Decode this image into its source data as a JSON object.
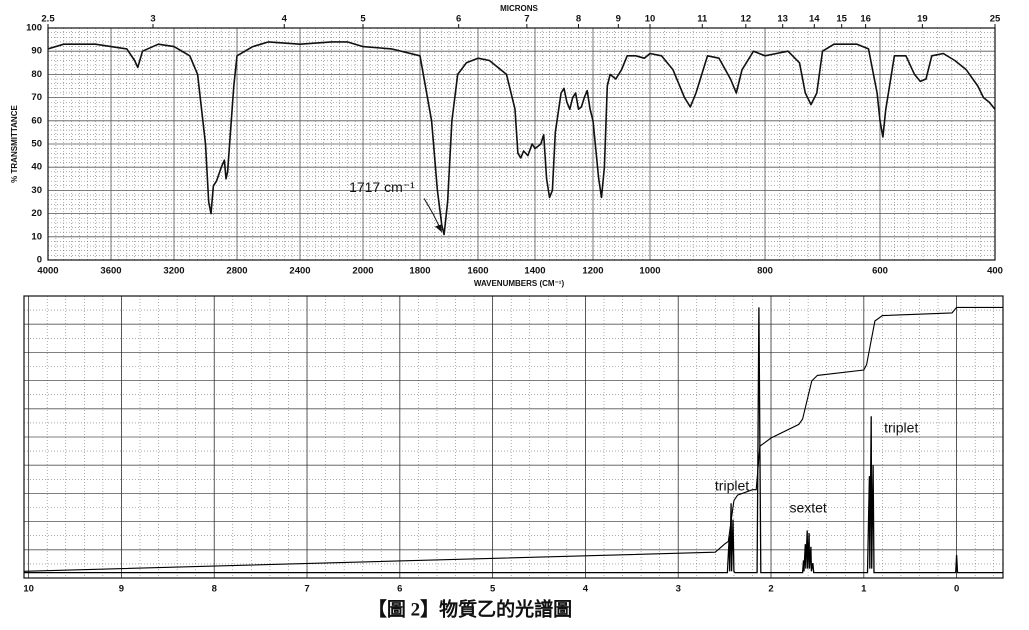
{
  "chart_data": [
    {
      "type": "line",
      "x2label": "MICRONS",
      "ylabel": "% TRANSMITTANCE",
      "xlabel": "WAVENUMBERS (CM⁻¹)",
      "x": [
        4000,
        3900,
        3700,
        3500,
        3450,
        3430,
        3400,
        3300,
        3200,
        3100,
        3050,
        3000,
        2980,
        2965,
        2950,
        2930,
        2900,
        2880,
        2870,
        2860,
        2820,
        2800,
        2700,
        2600,
        2400,
        2200,
        2100,
        2000,
        1900,
        1800,
        1760,
        1740,
        1725,
        1717,
        1705,
        1690,
        1670,
        1640,
        1600,
        1560,
        1500,
        1470,
        1460,
        1450,
        1440,
        1425,
        1410,
        1400,
        1380,
        1370,
        1360,
        1350,
        1340,
        1330,
        1310,
        1300,
        1290,
        1280,
        1270,
        1260,
        1250,
        1240,
        1230,
        1220,
        1210,
        1200,
        1180,
        1170,
        1160,
        1150,
        1140,
        1120,
        1100,
        1080,
        1050,
        1020,
        1000,
        980,
        960,
        940,
        930,
        920,
        900,
        880,
        860,
        850,
        840,
        820,
        800,
        780,
        760,
        740,
        730,
        720,
        710,
        700,
        680,
        660,
        640,
        620,
        605,
        600,
        595,
        590,
        575,
        555,
        540,
        530,
        520,
        510,
        490,
        470,
        450,
        430,
        420,
        410,
        400
      ],
      "values": [
        91,
        93,
        93,
        91,
        86,
        83,
        90,
        93,
        92,
        88,
        80,
        50,
        25,
        20,
        32,
        34,
        40,
        43,
        35,
        38,
        75,
        88,
        92,
        94,
        93,
        94,
        94,
        92,
        91,
        88,
        60,
        30,
        15,
        11,
        25,
        60,
        80,
        85,
        87,
        86,
        80,
        65,
        46,
        44,
        47,
        45,
        50,
        48,
        50,
        54,
        35,
        27,
        30,
        55,
        72,
        74,
        68,
        65,
        70,
        72,
        65,
        66,
        70,
        73,
        65,
        60,
        35,
        27,
        40,
        75,
        80,
        78,
        82,
        88,
        88,
        87,
        89,
        88,
        82,
        70,
        66,
        72,
        88,
        87,
        78,
        72,
        82,
        90,
        88,
        89,
        90,
        85,
        72,
        67,
        72,
        90,
        93,
        93,
        93,
        91,
        72,
        60,
        53,
        65,
        88,
        88,
        80,
        77,
        78,
        88,
        89,
        86,
        82,
        75,
        70,
        68,
        65
      ],
      "color": "#111111",
      "xlim": [
        4000,
        400
      ],
      "xticks": [
        4000,
        3600,
        3200,
        2800,
        2400,
        2000,
        1800,
        1600,
        1400,
        1200,
        1000,
        800,
        600,
        400
      ],
      "x2ticks": [
        2.5,
        3,
        4,
        5,
        6,
        7,
        8,
        9,
        10,
        11,
        12,
        13,
        14,
        15,
        16,
        19,
        25
      ],
      "ylim": [
        0,
        100
      ],
      "yticks": [
        0,
        10,
        20,
        30,
        40,
        50,
        60,
        70,
        80,
        90,
        100
      ],
      "grid": true,
      "annotations": [
        {
          "text": "1717 cm⁻¹",
          "x": 1717,
          "y": 11
        }
      ]
    },
    {
      "type": "line",
      "x": [
        10.05,
        2.47,
        2.45,
        2.445,
        2.43,
        2.425,
        2.41,
        2.4,
        2.39,
        2.15,
        2.13,
        2.11,
        1.66,
        1.65,
        1.645,
        1.63,
        1.625,
        1.61,
        1.605,
        1.59,
        1.585,
        1.57,
        1.565,
        1.55,
        1.54,
        0.96,
        0.94,
        0.935,
        0.92,
        0.915,
        0.9,
        0.89,
        0.01,
        0.0,
        -0.01,
        -0.5
      ],
      "values": [
        0.5,
        0.5,
        14,
        1,
        26,
        1,
        20,
        1,
        0.5,
        0.5,
        98,
        0.5,
        0.5,
        5,
        1,
        11,
        2,
        16,
        2,
        15,
        2,
        10,
        1,
        4,
        0.5,
        0.5,
        36,
        2,
        58,
        2,
        40,
        0.5,
        0.5,
        7,
        0.5,
        0.5
      ],
      "integral": {
        "x": [
          10.05,
          2.6,
          2.5,
          2.46,
          2.4,
          2.36,
          2.2,
          2.16,
          2.12,
          2.0,
          1.7,
          1.66,
          1.56,
          1.5,
          1.0,
          0.97,
          0.88,
          0.8,
          0.05,
          0.0,
          -0.5
        ],
        "values": [
          1,
          8,
          11,
          12,
          27,
          29,
          31,
          31,
          47,
          50,
          55,
          57,
          71,
          73,
          75,
          77,
          93,
          95,
          96,
          98,
          98
        ]
      },
      "color": "#000000",
      "xlim": [
        10.05,
        -0.5
      ],
      "xticks": [
        10,
        9,
        8,
        7,
        6,
        5,
        4,
        3,
        2,
        1,
        0
      ],
      "ylim": [
        0,
        100
      ],
      "grid": true,
      "annotations": [
        {
          "text": "triplet",
          "x": 2.42
        },
        {
          "text": "sextet",
          "x": 1.6
        },
        {
          "text": "triplet",
          "x": 0.92
        }
      ]
    }
  ],
  "caption": "【圖 2】物質乙的光譜圖"
}
